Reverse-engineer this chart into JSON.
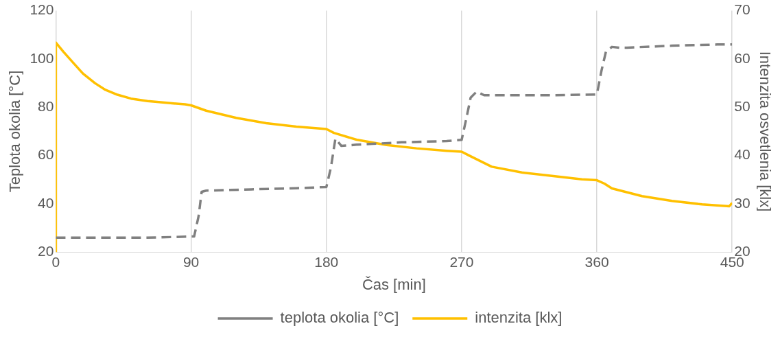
{
  "chart_data": {
    "type": "line",
    "xlabel": "Čas [min]",
    "ylabel": "Teplota okolia [°C]",
    "y2label": "Intenzita osvetlenia [klx]",
    "xlim": [
      0,
      450
    ],
    "xticks": [
      0,
      90,
      180,
      270,
      360,
      450
    ],
    "ylim": [
      20,
      120
    ],
    "yticks": [
      20,
      40,
      60,
      80,
      100,
      120
    ],
    "y2lim": [
      20,
      70
    ],
    "y2ticks": [
      20,
      30,
      40,
      50,
      60,
      70
    ],
    "grid": "x",
    "legend": "bottom",
    "marker": "none",
    "series": [
      {
        "name": "teplota okolia [°C]",
        "color": "#808080",
        "line_style": "dashed",
        "x": [
          0,
          30,
          60,
          92,
          95,
          97,
          100,
          130,
          160,
          180,
          183,
          186,
          190,
          200,
          230,
          260,
          270,
          273,
          276,
          280,
          285,
          300,
          330,
          360,
          363,
          366,
          370,
          375,
          380,
          410,
          440,
          450
        ],
        "values": [
          26,
          26,
          26,
          26.5,
          35,
          45,
          45.5,
          46,
          46.5,
          47,
          55,
          67,
          64,
          64.5,
          65.5,
          66,
          66.5,
          75,
          84,
          86.5,
          85,
          85,
          85,
          85.3,
          95,
          103,
          105,
          104.7,
          104.7,
          105.5,
          106,
          106
        ]
      },
      {
        "name": "intenzita [klx]",
        "color": "#ffc000",
        "line_style": "solid",
        "axis": "y2",
        "x": [
          0,
          0,
          5,
          11,
          18,
          26,
          33,
          41,
          50,
          61,
          75,
          86,
          90,
          100,
          120,
          140,
          160,
          180,
          185,
          200,
          220,
          240,
          260,
          270,
          275,
          290,
          310,
          330,
          350,
          360,
          365,
          370,
          390,
          410,
          430,
          448,
          450
        ],
        "values": [
          20,
          63.4,
          61.5,
          59.4,
          57,
          55,
          53.6,
          52.6,
          51.8,
          51.3,
          50.9,
          50.6,
          50.4,
          49.3,
          47.8,
          46.7,
          46,
          45.5,
          44.7,
          43.3,
          42.2,
          41.5,
          41,
          40.8,
          40,
          37.7,
          36.5,
          35.8,
          35.1,
          34.9,
          34.2,
          33.2,
          31.6,
          30.6,
          29.9,
          29.5,
          30.2
        ]
      }
    ]
  }
}
